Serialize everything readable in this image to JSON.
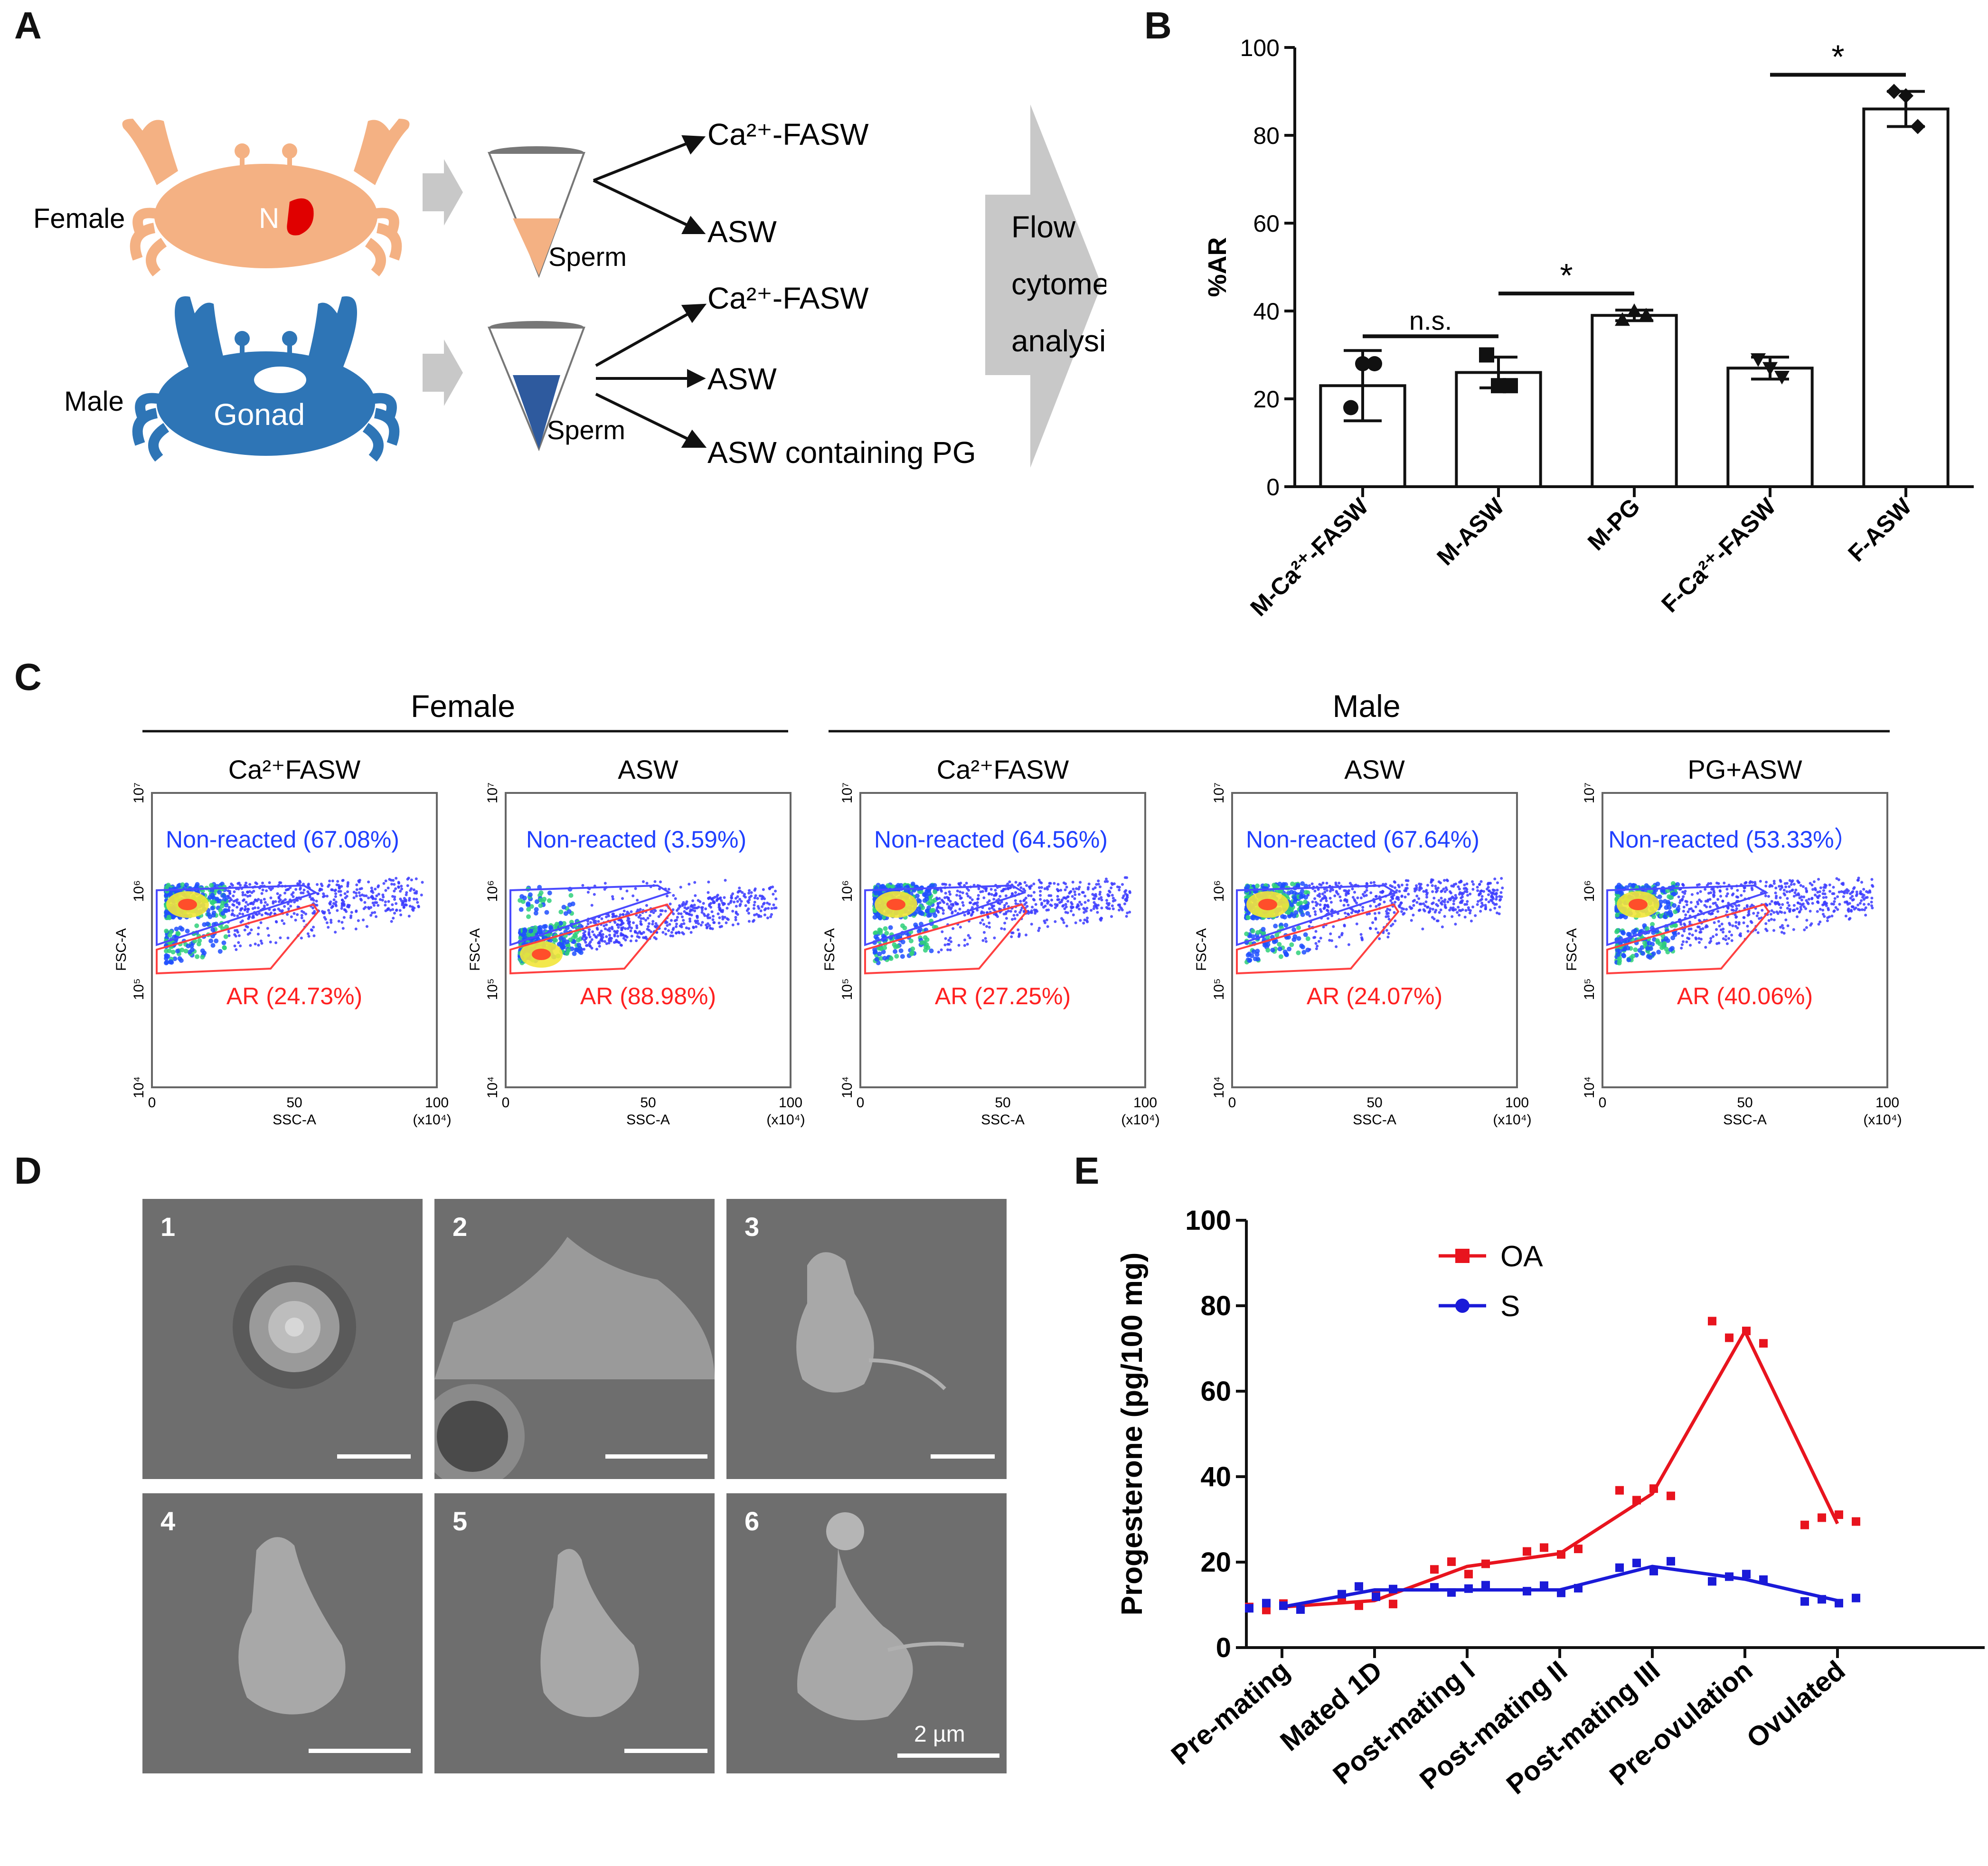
{
  "panels": {
    "a": "A",
    "b": "B",
    "c": "C",
    "d": "D",
    "e": "E"
  },
  "panelA": {
    "female_label": "Female",
    "male_label": "Male",
    "female_crab_letter": "N",
    "male_crab_label": "Gonad",
    "sperm_label": "Sperm",
    "female_targets": [
      "Ca²⁺-FASW",
      "ASW"
    ],
    "male_targets": [
      "Ca²⁺-FASW",
      "ASW",
      "ASW containing PG"
    ],
    "flow_lines": [
      "Flow",
      "cytometry",
      "analysis"
    ],
    "colors": {
      "female": "#f4b183",
      "male": "#2e75b6",
      "nucleus": "#e00000",
      "arrow": "#c8c8c8"
    }
  },
  "chart_data": [
    {
      "type": "bar",
      "panel": "B",
      "ylabel": "%AR",
      "ylim": [
        0,
        100
      ],
      "yticks": [
        0,
        20,
        40,
        60,
        80,
        100
      ],
      "categories": [
        "M-Ca²⁺-FASW",
        "M-ASW",
        "M-PG",
        "F-Ca²⁺-FASW",
        "F-ASW"
      ],
      "values": [
        23,
        26,
        39,
        27,
        86
      ],
      "errors": [
        8,
        3.5,
        1.2,
        2.5,
        4
      ],
      "points": [
        [
          18,
          28,
          28
        ],
        [
          30,
          23,
          23
        ],
        [
          38,
          39,
          40
        ],
        [
          29,
          25,
          27
        ],
        [
          90,
          82,
          89
        ]
      ],
      "markers": [
        "circle",
        "square",
        "triangle",
        "triangle-down",
        "diamond"
      ],
      "significance": [
        {
          "from": 0,
          "to": 1,
          "label": "n.s."
        },
        {
          "from": 1,
          "to": 2,
          "label": "*"
        },
        {
          "from": 3,
          "to": 4,
          "label": "*"
        }
      ]
    },
    {
      "type": "line",
      "panel": "E",
      "ylabel": "Progesterone (pg/100 mg)",
      "ylim": [
        0,
        100
      ],
      "yticks": [
        0,
        20,
        40,
        60,
        80,
        100
      ],
      "categories": [
        "Pre-mating",
        "Mated 1D",
        "Post-mating I",
        "Post-mating II",
        "Post-mating III",
        "Pre-ovulation",
        "Ovulated"
      ],
      "series": [
        {
          "name": "OA",
          "color": "#e8141e",
          "marker": "square",
          "values": [
            9.5,
            11,
            19,
            22,
            36,
            74,
            29
          ],
          "scatter": [
            [
              9.5,
              8.8,
              10.3,
              9.1
            ],
            [
              11.5,
              9.8,
              12.7,
              10.2
            ],
            [
              18.3,
              20.1,
              17.2,
              19.6
            ],
            [
              22.5,
              23.4,
              21.8,
              23.1
            ],
            [
              36.8,
              34.5,
              37.2,
              35.5
            ],
            [
              76.4,
              72.5,
              74.1,
              71.2
            ],
            [
              28.7,
              30.4,
              31.1,
              29.5
            ]
          ]
        },
        {
          "name": "S",
          "color": "#1a1ad8",
          "marker": "circle",
          "values": [
            9.5,
            13.5,
            13.5,
            13.5,
            19,
            16,
            11
          ],
          "scatter": [
            [
              9.2,
              10.4,
              9.8,
              8.9
            ],
            [
              12.5,
              14.3,
              11.9,
              13.7
            ],
            [
              14.1,
              12.9,
              13.8,
              14.6
            ],
            [
              13.2,
              14.5,
              12.8,
              13.9
            ],
            [
              18.7,
              19.8,
              17.9,
              20.2
            ],
            [
              15.5,
              16.6,
              17.2,
              15.9
            ],
            [
              10.8,
              11.3,
              10.4,
              11.6
            ]
          ]
        }
      ]
    }
  ],
  "panelC": {
    "group_labels": [
      "Female",
      "Male"
    ],
    "xlabel": "SSC-A",
    "ylabel": "FSC-A",
    "x_ticks": [
      "0",
      "50",
      "100"
    ],
    "x_unit": "(x10⁴)",
    "y_ticks": [
      "10⁴",
      "10⁵",
      "10⁶",
      "10⁷"
    ],
    "plots": [
      {
        "title": "Ca²⁺FASW",
        "non_reacted": "Non-reacted (67.08%)",
        "ar": "AR (24.73%)",
        "ar_fraction": 0.25
      },
      {
        "title": "ASW",
        "non_reacted": "Non-reacted (3.59%)",
        "ar": "AR (88.98%)",
        "ar_fraction": 0.89
      },
      {
        "title": "Ca²⁺FASW",
        "non_reacted": "Non-reacted (64.56%)",
        "ar": "AR (27.25%)",
        "ar_fraction": 0.27
      },
      {
        "title": "ASW",
        "non_reacted": "Non-reacted (67.64%)",
        "ar": "AR (24.07%)",
        "ar_fraction": 0.24
      },
      {
        "title": "PG+ASW",
        "non_reacted": "Non-reacted (53.33%）",
        "ar": "AR (40.06%)",
        "ar_fraction": 0.4
      }
    ],
    "colors": {
      "blue_text": "#1f3fff",
      "red_text": "#ff2020",
      "gate_blue": "#4a4aff",
      "gate_red": "#ff4040"
    }
  },
  "panelD": {
    "tiles": [
      "1",
      "2",
      "3",
      "4",
      "5",
      "6"
    ],
    "scale_label": "2 µm"
  }
}
